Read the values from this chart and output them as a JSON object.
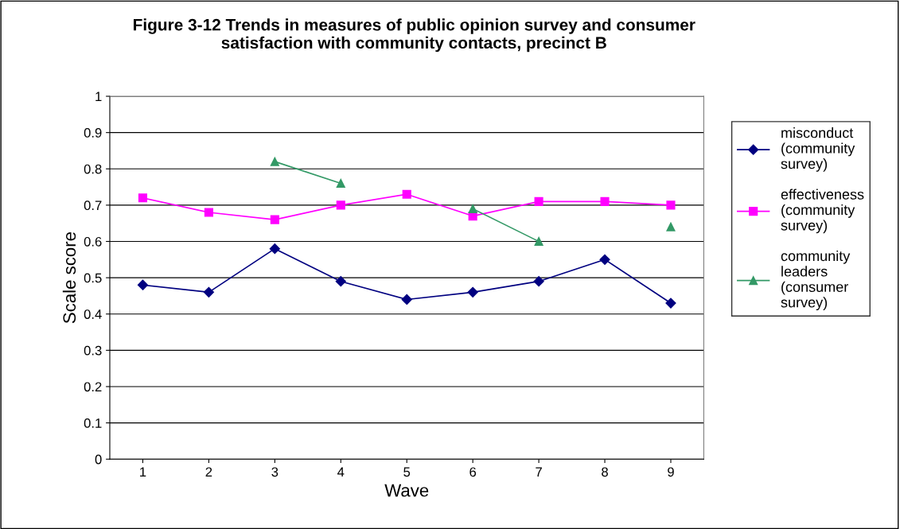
{
  "chart_data": {
    "type": "line",
    "title": "Figure 3-12 Trends in measures of public opinion survey and consumer\nsatisfaction with community contacts, precinct B",
    "xlabel": "Wave",
    "ylabel": "Scale score",
    "categories": [
      "1",
      "2",
      "3",
      "4",
      "5",
      "6",
      "7",
      "8",
      "9"
    ],
    "ylim": [
      0,
      1
    ],
    "yticks": [
      0,
      0.1,
      0.2,
      0.3,
      0.4,
      0.5,
      0.6,
      0.7,
      0.8,
      0.9,
      1
    ],
    "grid": "y",
    "legend": "right",
    "line_style": "solid",
    "series": [
      {
        "name": "misconduct\n(community\nsurvey)",
        "color": "#000080",
        "marker": "diamond",
        "values": [
          0.48,
          0.46,
          0.58,
          0.49,
          0.44,
          0.46,
          0.49,
          0.55,
          0.43
        ]
      },
      {
        "name": "effectiveness\n(community\nsurvey)",
        "color": "#ff00ff",
        "marker": "square",
        "values": [
          0.72,
          0.68,
          0.66,
          0.7,
          0.73,
          0.67,
          0.71,
          0.71,
          0.7
        ]
      },
      {
        "name": "community\nleaders\n(consumer\nsurvey)",
        "color": "#339966",
        "marker": "triangle",
        "values": [
          null,
          null,
          0.82,
          0.76,
          null,
          0.69,
          0.6,
          null,
          0.64
        ]
      }
    ]
  }
}
